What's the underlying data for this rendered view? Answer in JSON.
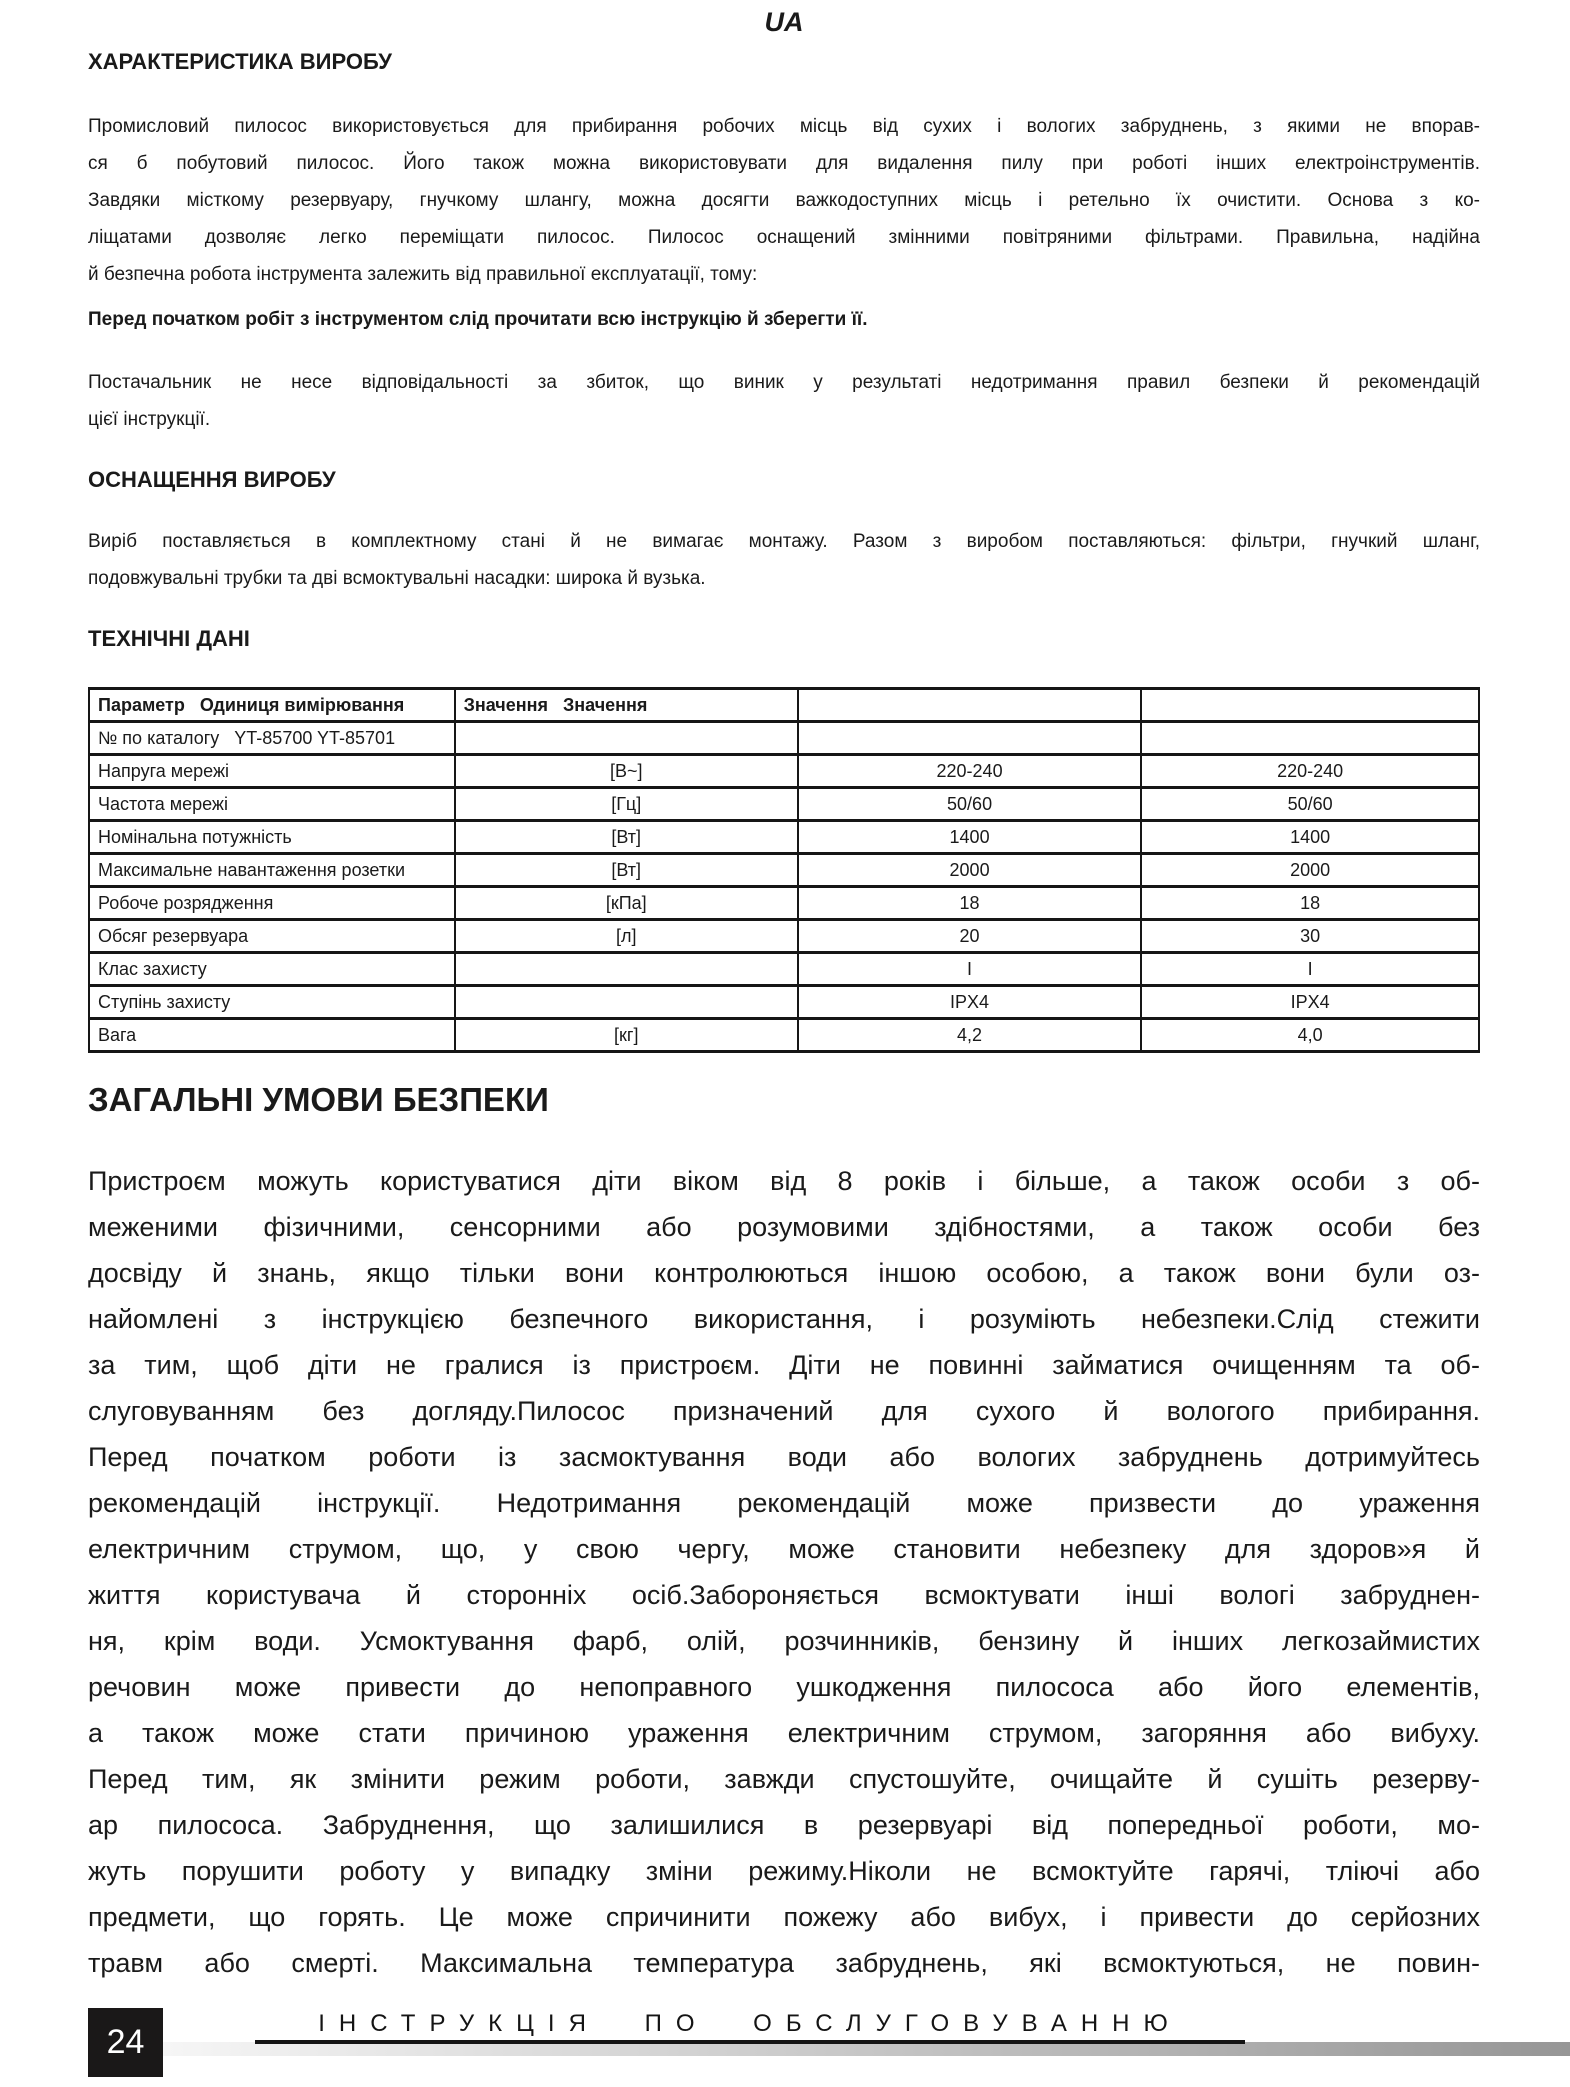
{
  "page": {
    "lang_tag": "UA",
    "page_number": "24",
    "footer_title": "ІНСТРУКЦІЯ ПО ОБСЛУГОВУВАННЮ"
  },
  "colors": {
    "text": "#1a1a1a",
    "page_bg": "#ffffff",
    "footer_box_bg": "#1a1818",
    "footer_box_text": "#ffffff",
    "footer_bar_left": "#f6f6f6",
    "footer_bar_right": "#969696"
  },
  "sections": {
    "characteristics": {
      "heading": "ХАРАКТЕРИСТИКА ВИРОБУ",
      "para1_lines": [
        "Промисловий пилосос використовується для прибирання робочих місць від сухих і вологих забруднень, з якими не впорав-",
        "ся б побутовий пилосос. Його також можна використовувати для видалення пилу при роботі інших електроінструментів.",
        "Завдяки місткому резервуару, гнучкому шлангу, можна досягти важкодоступних місць і ретельно їх очистити. Основа з ко-",
        "ліщатами дозволяє легко переміщати пилосос. Пилосос оснащений змінними повітряними фільтрами. Правильна, надійна",
        "й безпечна робота інструмента залежить від правильної експлуатації, тому:"
      ],
      "bold_note": "Перед початком робіт з інструментом слід прочитати всю інструкцію й зберегти її.",
      "para2_lines": [
        "Постачальник не несе відповідальності за збиток, що виник у результаті недотримання правил безпеки й рекомендацій",
        "цієї інструкції."
      ]
    },
    "equipment": {
      "heading": "ОСНАЩЕННЯ ВИРОБУ",
      "para_lines": [
        "Виріб поставляється в комплектному стані й не вимагає монтажу. Разом з виробом поставляються: фільтри, гнучкий шланг,",
        "подовжувальні трубки та дві всмоктувальні насадки: широка й вузька."
      ]
    },
    "tech_data": {
      "heading": "ТЕХНІЧНІ ДАНІ",
      "table": {
        "header": [
          "Параметр   Одиниця вимірювання",
          "Значення   Значення",
          "",
          ""
        ],
        "rows": [
          [
            "№ по каталогу   YT-85700 YT-85701",
            "",
            "",
            ""
          ],
          [
            "Напруга мережі",
            "[В~]",
            "220-240",
            "220-240"
          ],
          [
            "Частота мережі",
            "[Гц]",
            "50/60",
            "50/60"
          ],
          [
            "Номінальна потужність",
            "[Вт]",
            "1400",
            "1400"
          ],
          [
            "Максимальне навантаження розетки",
            "[Вт]",
            "2000",
            "2000"
          ],
          [
            "Робоче розрядження",
            "[кПа]",
            "18",
            "18"
          ],
          [
            "Обсяг резервуара",
            "[л]",
            "20",
            "30"
          ],
          [
            "Клас захисту",
            "",
            "I",
            "I"
          ],
          [
            "Ступінь захисту",
            "",
            "IPX4",
            "IPX4"
          ],
          [
            "Вага",
            "[кг]",
            "4,2",
            "4,0"
          ]
        ]
      }
    },
    "safety": {
      "heading": "ЗАГАЛЬНІ УМОВИ БЕЗПЕКИ",
      "para_lines": [
        "Пристроєм можуть користуватися діти віком від 8 років і більше, а також особи з об-",
        "меженими фізичними, сенсорними або розумовими здібностями, а також особи без",
        "досвіду й знань, якщо тільки вони контролюються іншою особою, а також вони були оз-",
        "найомлені з інструкцією безпечного використання, і розуміють небезпеки.Слід стежити",
        "за тим, щоб діти не гралися із пристроєм. Діти не повинні займатися очищенням та об-",
        "слуговуванням без догляду.Пилосос призначений для сухого й вологого прибирання.",
        "Перед початком роботи із засмоктування води або вологих забруднень дотримуйтесь",
        "рекомендацій інструкції. Недотримання рекомендацій може призвести до ураження",
        "електричним струмом, що, у свою чергу, може становити небезпеку для здоров»я й",
        "життя користувача й сторонніх осіб.Забороняється всмоктувати інші вологі забруднен-",
        "ня, крім води. Усмоктування фарб, олій, розчинників, бензину й інших легкозаймистих",
        "речовин може привести до непоправного ушкодження пилососа або його елементів,",
        "а також може стати причиною ураження електричним струмом, загоряння або вибуху.",
        "Перед тим, як змінити режим роботи, завжди спустошуйте, очищайте й сушіть резерву-",
        "ар пилососа. Забруднення, що залишилися в резервуарі від попередньої роботи, мо-",
        "жуть порушити роботу у випадку зміни режиму.Ніколи не всмоктуйте гарячі, тліючі або",
        "предмети, що горять. Це може спричинити пожежу або вибух, і привести до серйозних",
        "травм або смерті. Максимальна температура забруднень, які всмоктуються, не повин-"
      ]
    }
  }
}
